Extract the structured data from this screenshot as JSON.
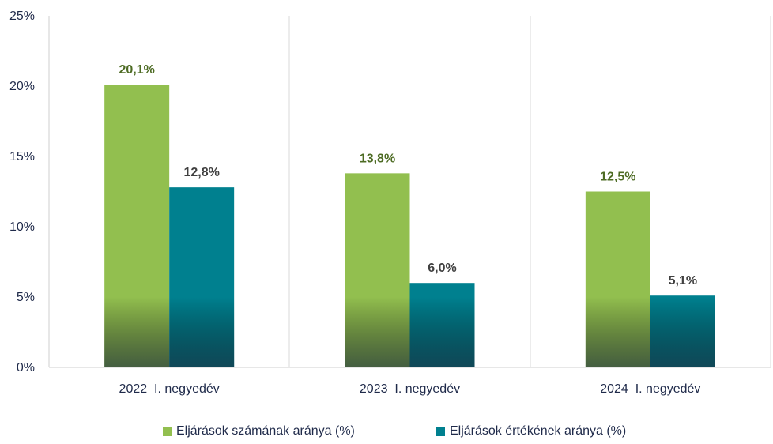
{
  "chart_data": {
    "type": "bar",
    "categories": [
      "2022  I. negyedév",
      "2023  I. negyedév",
      "2024  I. negyedév"
    ],
    "series": [
      {
        "name": "Eljárások számának aránya (%)",
        "values": [
          20.1,
          13.8,
          12.5
        ],
        "labels": [
          "20,1%",
          "13,8%",
          "12,5%"
        ],
        "color": "#92bf4f",
        "label_color": "#4d6b23"
      },
      {
        "name": "Eljárások értékének aránya (%)",
        "values": [
          12.8,
          6.0,
          5.1
        ],
        "labels": [
          "12,8%",
          "6,0%",
          "5,1%"
        ],
        "color": "#00808f",
        "label_color": "#404040"
      }
    ],
    "ylim": [
      0,
      25
    ],
    "yticks": [
      0,
      5,
      10,
      15,
      20,
      25
    ],
    "ytick_labels": [
      "0%",
      "5%",
      "10%",
      "15%",
      "20%",
      "25%"
    ],
    "grid": "vertical category separators",
    "legend": "bottom-center",
    "xlabel": "",
    "ylabel": ""
  }
}
